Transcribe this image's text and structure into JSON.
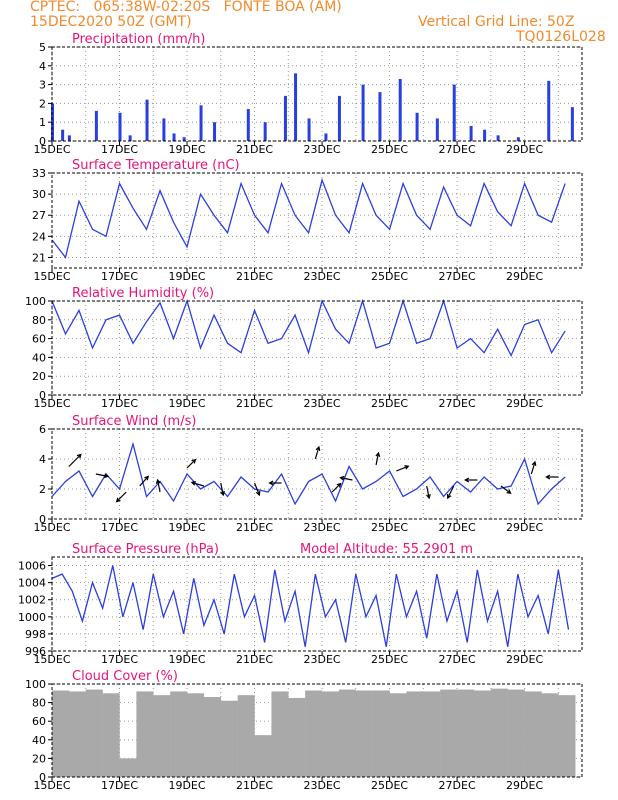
{
  "header": {
    "line1_left": "CPTEC:   065:38W-02:20S   FONTE BOA (AM)",
    "line2_left": "15DEC2020 50Z (GMT)",
    "line1_right": "Vertical Grid Line: 50Z",
    "line2_right": "TQ0126L028"
  },
  "colors": {
    "header": "#f28a2c",
    "title": "#e8137a",
    "line": "#2a3fe0",
    "cloud": "#a9a9a9",
    "arrow": "#000000"
  },
  "chart_data": [
    {
      "type": "bar",
      "title": "Precipitation  (mm/h)",
      "ylim": [
        0,
        5
      ],
      "yticks": [
        "0",
        "1",
        "2",
        "3",
        "4",
        "5"
      ],
      "xticks": [
        "15DEC",
        "17DEC",
        "19DEC",
        "21DEC",
        "23DEC",
        "25DEC",
        "27DEC",
        "29DEC"
      ],
      "x_days": [
        0,
        0.3,
        0.5,
        1.3,
        2.0,
        2.3,
        2.8,
        3.3,
        3.6,
        3.9,
        4.4,
        4.8,
        5.8,
        6.3,
        6.9,
        7.2,
        7.6,
        8.1,
        8.5,
        9.2,
        9.7,
        10.3,
        10.8,
        11.4,
        11.9,
        12.4,
        12.8,
        13.2,
        13.8,
        14.7,
        15.4
      ],
      "values": [
        2.0,
        0.6,
        0.3,
        1.6,
        1.5,
        0.3,
        2.2,
        1.2,
        0.4,
        0.2,
        1.9,
        1.0,
        1.7,
        1.0,
        2.4,
        3.6,
        1.2,
        0.4,
        2.4,
        3.0,
        2.6,
        3.3,
        1.5,
        1.2,
        3.0,
        0.8,
        0.6,
        0.3,
        0.2,
        3.2,
        1.8
      ]
    },
    {
      "type": "line",
      "title": "Surface Temperature (nC)",
      "ylim": [
        19.5,
        33
      ],
      "yticks": [
        "21",
        "24",
        "27",
        "30",
        "33"
      ],
      "xticks": [
        "15DEC",
        "17DEC",
        "19DEC",
        "21DEC",
        "23DEC",
        "25DEC",
        "27DEC",
        "29DEC"
      ],
      "x_days": [
        0,
        0.4,
        0.8,
        1.2,
        1.6,
        2.0,
        2.4,
        2.8,
        3.2,
        3.6,
        4.0,
        4.4,
        4.8,
        5.2,
        5.6,
        6.0,
        6.4,
        6.8,
        7.2,
        7.6,
        8.0,
        8.4,
        8.8,
        9.2,
        9.6,
        10.0,
        10.4,
        10.8,
        11.2,
        11.6,
        12.0,
        12.4,
        12.8,
        13.2,
        13.6,
        14.0,
        14.4,
        14.8,
        15.2
      ],
      "values": [
        23.5,
        21.0,
        29.0,
        25.0,
        24.0,
        31.5,
        28.0,
        25.0,
        30.5,
        26.0,
        22.5,
        30.0,
        27.0,
        24.5,
        31.5,
        27.0,
        24.5,
        31.5,
        27.0,
        24.5,
        32.0,
        27.0,
        24.5,
        31.5,
        27.0,
        25.0,
        31.5,
        27.0,
        25.0,
        31.0,
        27.0,
        25.5,
        31.5,
        27.5,
        25.5,
        31.5,
        27.0,
        26.0,
        31.5
      ]
    },
    {
      "type": "line",
      "title": "Relative Humidity (%)",
      "ylim": [
        0,
        100
      ],
      "yticks": [
        "0",
        "20",
        "40",
        "60",
        "80",
        "100"
      ],
      "xticks": [
        "15DEC",
        "17DEC",
        "19DEC",
        "21DEC",
        "23DEC",
        "25DEC",
        "27DEC",
        "29DEC"
      ],
      "x_days": [
        0,
        0.4,
        0.8,
        1.2,
        1.6,
        2.0,
        2.4,
        2.8,
        3.2,
        3.6,
        4.0,
        4.4,
        4.8,
        5.2,
        5.6,
        6.0,
        6.4,
        6.8,
        7.2,
        7.6,
        8.0,
        8.4,
        8.8,
        9.2,
        9.6,
        10.0,
        10.4,
        10.8,
        11.2,
        11.6,
        12.0,
        12.4,
        12.8,
        13.2,
        13.6,
        14.0,
        14.4,
        14.8,
        15.2
      ],
      "values": [
        100,
        65,
        90,
        50,
        80,
        85,
        55,
        78,
        98,
        60,
        100,
        50,
        85,
        55,
        45,
        90,
        55,
        60,
        85,
        45,
        100,
        70,
        55,
        100,
        50,
        55,
        100,
        55,
        60,
        100,
        50,
        60,
        45,
        70,
        42,
        75,
        80,
        45,
        68
      ]
    },
    {
      "type": "line",
      "title": "Surface Wind (m/s)",
      "ylim": [
        0,
        6
      ],
      "yticks": [
        "0",
        "2",
        "4",
        "6"
      ],
      "xticks": [
        "15DEC",
        "17DEC",
        "19DEC",
        "21DEC",
        "23DEC",
        "25DEC",
        "27DEC",
        "29DEC"
      ],
      "x_days": [
        0,
        0.4,
        0.8,
        1.2,
        1.6,
        2.0,
        2.4,
        2.8,
        3.2,
        3.6,
        4.0,
        4.4,
        4.8,
        5.2,
        5.6,
        6.0,
        6.4,
        6.8,
        7.2,
        7.6,
        8.0,
        8.4,
        8.8,
        9.2,
        9.6,
        10.0,
        10.4,
        10.8,
        11.2,
        11.6,
        12.0,
        12.4,
        12.8,
        13.2,
        13.6,
        14.0,
        14.4,
        14.8,
        15.2
      ],
      "values": [
        1.5,
        2.5,
        3.2,
        1.5,
        3.0,
        2.0,
        5.0,
        1.5,
        2.5,
        1.2,
        3.0,
        2.0,
        2.5,
        1.5,
        2.8,
        2.0,
        1.8,
        3.0,
        1.0,
        2.5,
        3.0,
        1.2,
        3.5,
        2.0,
        2.5,
        3.2,
        1.5,
        2.0,
        2.8,
        1.5,
        2.5,
        1.8,
        2.8,
        2.0,
        2.2,
        4.0,
        1.0,
        2.0,
        2.8
      ],
      "arrows": [
        {
          "day": 0.5,
          "val": 3.5,
          "dir": [
            1,
            1
          ]
        },
        {
          "day": 1.3,
          "val": 3.0,
          "dir": [
            1,
            -0.2
          ]
        },
        {
          "day": 2.2,
          "val": 1.8,
          "dir": [
            -0.8,
            -0.8
          ]
        },
        {
          "day": 2.6,
          "val": 2.2,
          "dir": [
            0.7,
            0.8
          ]
        },
        {
          "day": 3.2,
          "val": 1.8,
          "dir": [
            -0.2,
            1
          ]
        },
        {
          "day": 4.0,
          "val": 3.4,
          "dir": [
            0.7,
            0.7
          ]
        },
        {
          "day": 4.5,
          "val": 2.2,
          "dir": [
            -1,
            0.3
          ]
        },
        {
          "day": 5.0,
          "val": 2.4,
          "dir": [
            0.2,
            -1
          ]
        },
        {
          "day": 6.0,
          "val": 2.4,
          "dir": [
            0.4,
            -1
          ]
        },
        {
          "day": 6.8,
          "val": 2.4,
          "dir": [
            -1,
            0
          ]
        },
        {
          "day": 7.8,
          "val": 4.0,
          "dir": [
            0.3,
            1
          ]
        },
        {
          "day": 8.3,
          "val": 1.8,
          "dir": [
            0.7,
            0.7
          ]
        },
        {
          "day": 8.9,
          "val": 2.6,
          "dir": [
            -1,
            0.2
          ]
        },
        {
          "day": 9.6,
          "val": 3.6,
          "dir": [
            0.2,
            1
          ]
        },
        {
          "day": 10.2,
          "val": 3.2,
          "dir": [
            1,
            0.4
          ]
        },
        {
          "day": 11.1,
          "val": 2.2,
          "dir": [
            0.2,
            -1
          ]
        },
        {
          "day": 11.9,
          "val": 2.2,
          "dir": [
            -0.5,
            -1
          ]
        },
        {
          "day": 12.6,
          "val": 2.6,
          "dir": [
            -1,
            0
          ]
        },
        {
          "day": 13.3,
          "val": 2.2,
          "dir": [
            0.8,
            -0.6
          ]
        },
        {
          "day": 14.2,
          "val": 3.0,
          "dir": [
            0.3,
            1
          ]
        },
        {
          "day": 15.0,
          "val": 2.8,
          "dir": [
            -1,
            0
          ]
        }
      ]
    },
    {
      "type": "line",
      "title": "Surface Pressure (hPa)",
      "annotation": "Model Altitude: 55.2901  m",
      "ylim": [
        996,
        1007
      ],
      "yticks": [
        "996",
        "998",
        "1000",
        "1002",
        "1004",
        "1006"
      ],
      "xticks": [
        "15DEC",
        "17DEC",
        "19DEC",
        "21DEC",
        "23DEC",
        "25DEC",
        "27DEC",
        "29DEC"
      ],
      "x_days": [
        0,
        0.3,
        0.6,
        0.9,
        1.2,
        1.5,
        1.8,
        2.1,
        2.4,
        2.7,
        3.0,
        3.3,
        3.6,
        3.9,
        4.2,
        4.5,
        4.8,
        5.1,
        5.4,
        5.7,
        6.0,
        6.3,
        6.6,
        6.9,
        7.2,
        7.5,
        7.8,
        8.1,
        8.4,
        8.7,
        9.0,
        9.3,
        9.6,
        9.9,
        10.2,
        10.5,
        10.8,
        11.1,
        11.4,
        11.7,
        12.0,
        12.3,
        12.6,
        12.9,
        13.2,
        13.5,
        13.8,
        14.1,
        14.4,
        14.7,
        15.0,
        15.3
      ],
      "values": [
        1004.5,
        1005,
        1003,
        999.5,
        1004,
        1001,
        1006,
        1000,
        1004,
        998.5,
        1005,
        1000,
        1003,
        998,
        1004.5,
        999,
        1002,
        998,
        1005,
        1000,
        1002.5,
        997,
        1005.5,
        999.5,
        1003,
        996.5,
        1005,
        1000,
        1002,
        997,
        1005,
        1000,
        1002.5,
        996.5,
        1005,
        1000,
        1003,
        997.5,
        1005,
        999.5,
        1003,
        997,
        1005.5,
        999.5,
        1003,
        996.5,
        1005,
        1000,
        1002.5,
        998,
        1005.5,
        998.5
      ]
    },
    {
      "type": "bar",
      "title": "Cloud Cover (%)",
      "ylim": [
        0,
        100
      ],
      "yticks": [
        "0",
        "20",
        "40",
        "60",
        "80",
        "100"
      ],
      "xticks": [
        "15DEC",
        "17DEC",
        "19DEC",
        "21DEC",
        "23DEC",
        "25DEC",
        "27DEC",
        "29DEC"
      ],
      "x_days": [
        0,
        0.5,
        1.0,
        1.5,
        2.0,
        2.5,
        3.0,
        3.5,
        4.0,
        4.5,
        5.0,
        5.5,
        6.0,
        6.5,
        7.0,
        7.5,
        8.0,
        8.5,
        9.0,
        9.5,
        10.0,
        10.5,
        11.0,
        11.5,
        12.0,
        12.5,
        13.0,
        13.5,
        14.0,
        14.5,
        15.0
      ],
      "values": [
        93,
        92,
        94,
        90,
        20,
        92,
        88,
        92,
        90,
        86,
        82,
        88,
        45,
        92,
        85,
        93,
        92,
        94,
        93,
        93,
        90,
        92,
        92,
        94,
        94,
        93,
        95,
        94,
        92,
        90,
        88
      ]
    }
  ],
  "vertical_grid_days": [
    0,
    1,
    2,
    3,
    4,
    5,
    6,
    7,
    8,
    9,
    10,
    11,
    12,
    13,
    14,
    15
  ]
}
